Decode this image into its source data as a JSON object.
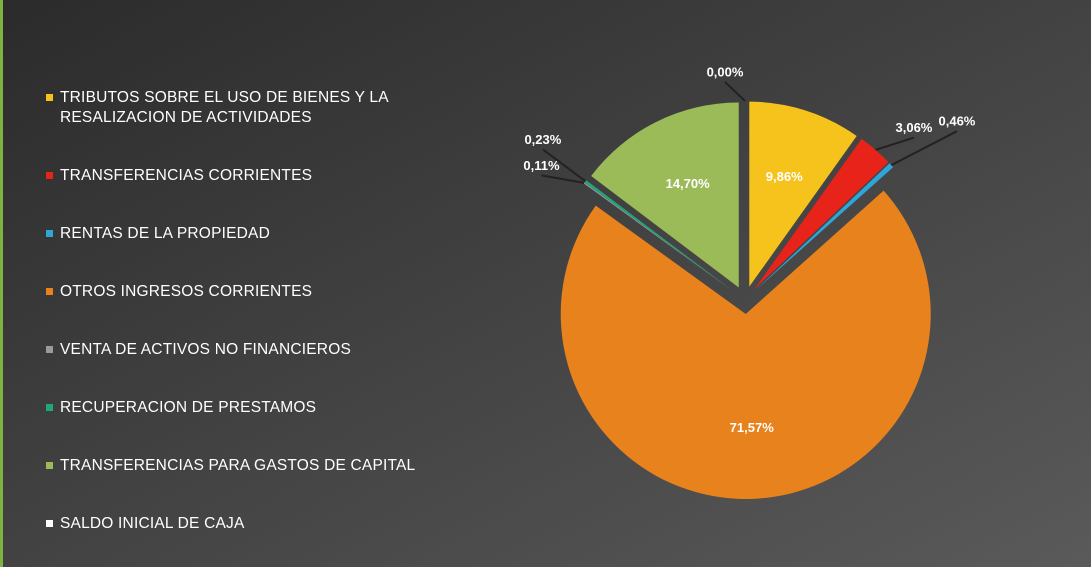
{
  "chart_data": {
    "type": "pie",
    "categories": [
      "TRIBUTOS SOBRE EL USO DE BIENES Y LA RESALIZACION DE ACTIVIDADES",
      "TRANSFERENCIAS CORRIENTES",
      "RENTAS DE LA PROPIEDAD",
      "OTROS INGRESOS CORRIENTES",
      "VENTA DE ACTIVOS NO FINANCIEROS",
      "RECUPERACION DE PRESTAMOS",
      "TRANSFERENCIAS PARA GASTOS DE CAPITAL",
      "SALDO INICIAL DE CAJA"
    ],
    "values": [
      9.86,
      3.06,
      0.46,
      71.57,
      0.11,
      0.23,
      14.7,
      0.0
    ],
    "value_labels": [
      "9,86%",
      "3,06%",
      "0,46%",
      "71,57%",
      "0,11%",
      "0,23%",
      "14,70%",
      "0,00%"
    ],
    "colors": [
      "#f6c21c",
      "#e8231a",
      "#2ea7d8",
      "#e8821c",
      "#9a9a9a",
      "#1fa67a",
      "#9bbb59",
      "#ffffff"
    ],
    "legend": "left"
  }
}
